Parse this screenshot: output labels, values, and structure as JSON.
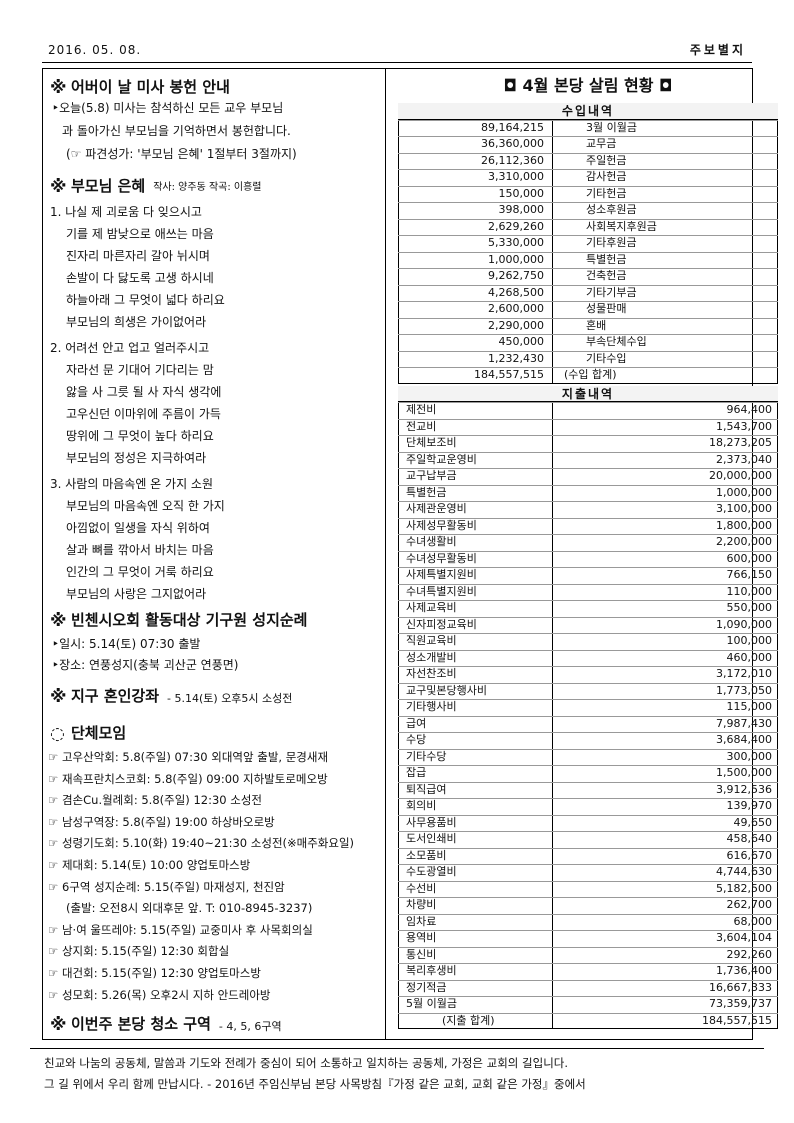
{
  "header": {
    "date": "2016. 05. 08.",
    "label": "주보별지"
  },
  "left": {
    "sections": [
      {
        "mark": "※",
        "title": "어버이 날 미사 봉헌 안내",
        "lines": [
          "‣오늘(5.8) 미사는 참석하신 모든 교우 부모님",
          "과 돌아가신 부모님을 기억하면서 봉헌합니다.",
          "(☞ 파견성가: '부모님 은혜' 1절부터 3절까지)"
        ]
      },
      {
        "mark": "※",
        "title": "부모님 은혜",
        "note": "작사: 양주동  작곡: 이흥렬",
        "verses": [
          [
            "1. 나실 제 괴로움 다 잊으시고",
            "기를 제 밤낮으로 애쓰는 마음",
            "진자리 마른자리 갈아 뉘시며",
            "손발이 다 닳도록 고생 하시네",
            "하늘아래 그 무엇이 넓다 하리요",
            "부모님의 희생은 가이없어라"
          ],
          [
            "2. 어려선 안고 업고 얼러주시고",
            "자라선 문 기대어 기다리는 맘",
            "앓을 사 그릇 될 사 자식 생각에",
            "고우신던 이마위에 주름이 가득",
            "땅위에 그 무엇이 높다 하리요",
            "부모님의 정성은 지극하여라"
          ],
          [
            "3. 사람의 마음속엔 온 가지 소원",
            "부모님의 마음속엔 오직 한 가지",
            "아낌없이 일생을 자식 위하여",
            "살과 뼈를 깎아서 바치는 마음",
            "인간의 그 무엇이 거룩 하리요",
            "부모님의 사랑은 그지없어라"
          ]
        ]
      },
      {
        "mark": "※",
        "title": "빈첸시오회 활동대상 기구원 성지순례",
        "lines": [
          "‣일시: 5.14(토) 07:30 출발",
          "‣장소: 연풍성지(충북 괴산군 연풍면)"
        ]
      },
      {
        "mark": "※",
        "title": "지구 혼인강좌",
        "note": "- 5.14(토) 오후5시 소성전"
      },
      {
        "mark": "◌",
        "title": "단체모임",
        "lines": [
          "☞ 고우산악회: 5.8(주일) 07:30 외대역앞 출발, 문경새재",
          "☞ 재속프란치스코회: 5.8(주일) 09:00 지하발토로메오방",
          "☞ 겸손Cu.월례회: 5.8(주일) 12:30 소성전",
          "☞ 남성구역장: 5.8(주일) 19:00 하상바오로방",
          "☞ 성령기도회: 5.10(화) 19:40~21:30 소성전(※매주화요일)",
          "☞ 제대회: 5.14(토) 10:00 양업토마스방",
          "☞ 6구역 성지순례: 5.15(주일) 마재성지, 천진암",
          "(출발: 오전8시 외대후문 앞. T: 010-8945-3237)",
          "☞ 남·여 울뜨레야: 5.15(주일) 교중미사 후 사목회의실",
          "☞ 상지회: 5.15(주일) 12:30 회합실",
          "☞ 대건회: 5.15(주일) 12:30 양업토마스방",
          "☞ 성모회: 5.26(목) 오후2시 지하 안드레아방"
        ]
      },
      {
        "mark": "※",
        "title": "이번주 본당 청소 구역",
        "note": "- 4, 5, 6구역"
      }
    ]
  },
  "right": {
    "title": "◘ 4월 본당 살림 현황 ◘",
    "income": {
      "header": "수입내역",
      "rows": [
        [
          "89,164,215",
          "3월 이월금"
        ],
        [
          "36,360,000",
          "교무금"
        ],
        [
          "26,112,360",
          "주일헌금"
        ],
        [
          "3,310,000",
          "감사헌금"
        ],
        [
          "150,000",
          "기타헌금"
        ],
        [
          "398,000",
          "성소후원금"
        ],
        [
          "2,629,260",
          "사회복지후원금"
        ],
        [
          "5,330,000",
          "기타후원금"
        ],
        [
          "1,000,000",
          "특별헌금"
        ],
        [
          "9,262,750",
          "건축헌금"
        ],
        [
          "4,268,500",
          "기타기부금"
        ],
        [
          "2,600,000",
          "성물판매"
        ],
        [
          "2,290,000",
          "혼배"
        ],
        [
          "450,000",
          "부속단체수입"
        ],
        [
          "1,232,430",
          "기타수입"
        ],
        [
          "184,557,515",
          "(수입 합계)"
        ]
      ]
    },
    "expense": {
      "header": "지출내역",
      "rows": [
        [
          "제전비",
          "964,400"
        ],
        [
          "전교비",
          "1,543,700"
        ],
        [
          "단체보조비",
          "18,273,205"
        ],
        [
          "주일학교운영비",
          "2,373,040"
        ],
        [
          "교구납부금",
          "20,000,000"
        ],
        [
          "특별헌금",
          "1,000,000"
        ],
        [
          "사제관운영비",
          "3,100,000"
        ],
        [
          "사제성무활동비",
          "1,800,000"
        ],
        [
          "수녀생활비",
          "2,200,000"
        ],
        [
          "수녀성무활동비",
          "600,000"
        ],
        [
          "사제특별지원비",
          "766,150"
        ],
        [
          "수녀특별지원비",
          "110,000"
        ],
        [
          "사제교육비",
          "550,000"
        ],
        [
          "신자피정교육비",
          "1,090,000"
        ],
        [
          "직원교육비",
          "100,000"
        ],
        [
          "성소개발비",
          "460,000"
        ],
        [
          "자선찬조비",
          "3,172,010"
        ],
        [
          "교구및본당행사비",
          "1,773,050"
        ],
        [
          "기타행사비",
          "115,000"
        ],
        [
          "급여",
          "7,987,430"
        ],
        [
          "수당",
          "3,684,400"
        ],
        [
          "기타수당",
          "300,000"
        ],
        [
          "잡급",
          "1,500,000"
        ],
        [
          "퇴직급여",
          "3,912,536"
        ],
        [
          "회의비",
          "139,970"
        ],
        [
          "사무용품비",
          "49,650"
        ],
        [
          "도서인쇄비",
          "458,640"
        ],
        [
          "소모품비",
          "616,670"
        ],
        [
          "수도광열비",
          "4,744,630"
        ],
        [
          "수선비",
          "5,182,500"
        ],
        [
          "차량비",
          "262,700"
        ],
        [
          "임차료",
          "68,000"
        ],
        [
          "용역비",
          "3,604,104"
        ],
        [
          "통신비",
          "292,260"
        ],
        [
          "복리후생비",
          "1,736,400"
        ],
        [
          "정기적금",
          "16,667,333"
        ],
        [
          "5월 이월금",
          "73,359,737"
        ],
        [
          "(지출 합계)",
          "184,557,515"
        ]
      ]
    }
  },
  "footer": {
    "lines": [
      "친교와 나눔의 공동체, 말씀과 기도와 전례가 중심이 되어 소통하고 일치하는 공동체, 가정은 교회의 길입니다.",
      "그 길 위에서 우리 함께 만납시다.  - 2016년 주임신부님 본당 사목방침『가정 같은 교회, 교회 같은 가정』중에서"
    ]
  }
}
